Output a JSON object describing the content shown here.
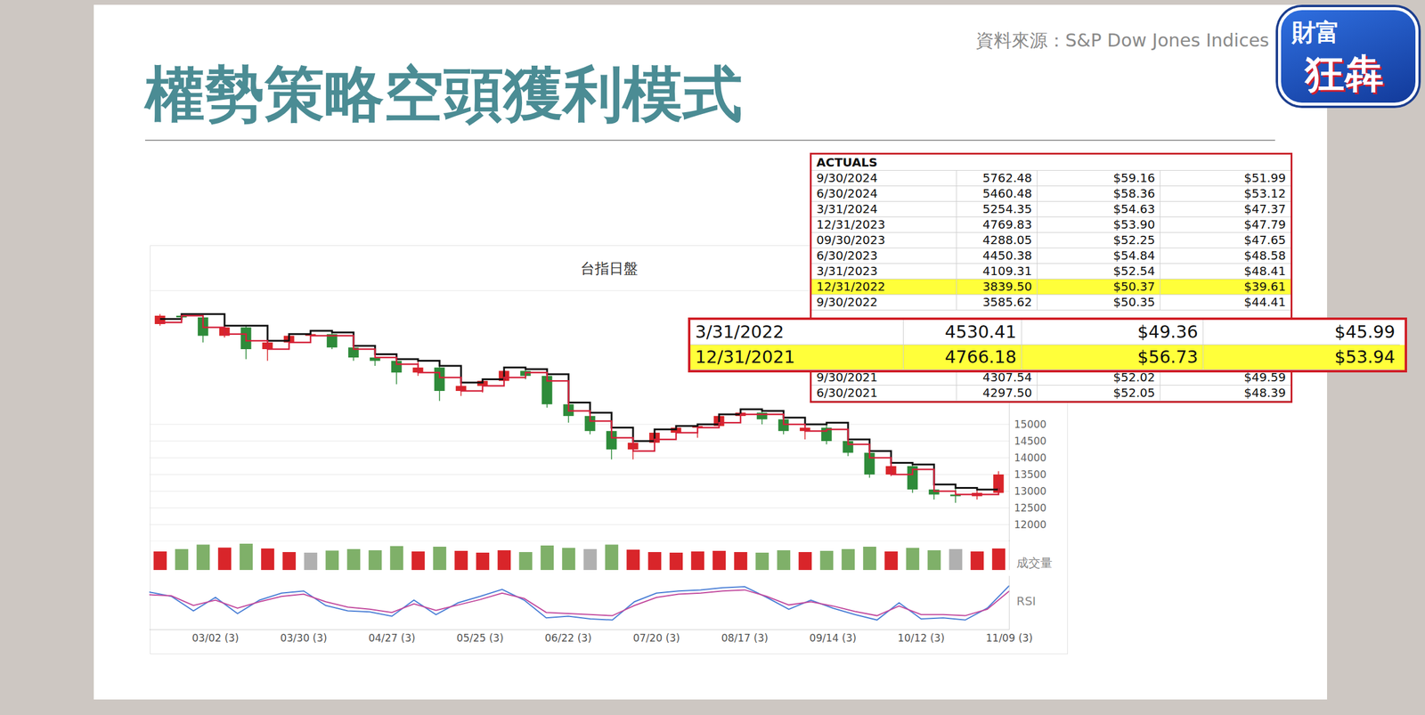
{
  "title": "權勢策略空頭獲利模式",
  "source": "資料來源：S&P Dow Jones Indices",
  "logo": {
    "top": "財富",
    "bottom": "狂犇"
  },
  "chart_data": {
    "type": "candlestick",
    "title": "台指日盤",
    "x": [
      null,
      null,
      null,
      "03/02 (3)",
      null,
      null,
      null,
      "03/30 (3)",
      null,
      null,
      null,
      "04/27 (3)",
      null,
      null,
      null,
      "05/25 (3)",
      null,
      null,
      null,
      "06/22 (3)",
      null,
      null,
      null,
      "07/20 (3)",
      null,
      null,
      null,
      "08/17 (3)",
      null,
      null,
      null,
      "09/14 (3)",
      null,
      null,
      null,
      "10/12 (3)",
      null,
      null,
      null,
      "11/09 (3)"
    ],
    "ylim": [
      11500,
      19000
    ],
    "yticks": [
      12000,
      12500,
      13000,
      13500,
      14000,
      14500,
      15000
    ],
    "grid": true,
    "open": [
      18000,
      18250,
      18200,
      17650,
      17900,
      17250,
      17450,
      17650,
      17700,
      17300,
      17000,
      16900,
      16550,
      16700,
      16000,
      16150,
      16300,
      16600,
      16450,
      15600,
      15250,
      14800,
      14250,
      14450,
      14750,
      14900,
      14950,
      15250,
      15350,
      15150,
      14800,
      14900,
      14500,
      14150,
      13500,
      13750,
      13050,
      12900,
      12850,
      12950
    ],
    "high": [
      18300,
      18320,
      18250,
      17950,
      17950,
      17500,
      17700,
      17800,
      17750,
      17350,
      17100,
      16950,
      16900,
      16750,
      16250,
      16350,
      16700,
      16650,
      16500,
      15650,
      15350,
      14900,
      14500,
      14850,
      14950,
      15000,
      15300,
      15450,
      15400,
      15200,
      15000,
      15050,
      14550,
      14200,
      13850,
      13800,
      13200,
      13100,
      13050,
      13600
    ],
    "low": [
      17950,
      18050,
      17450,
      17600,
      16950,
      16900,
      17400,
      17550,
      17250,
      16900,
      16750,
      16200,
      16450,
      15700,
      15850,
      15950,
      16250,
      16350,
      15500,
      15050,
      14700,
      13950,
      13950,
      14400,
      14650,
      14600,
      14900,
      15200,
      15000,
      14700,
      14550,
      14400,
      14050,
      13400,
      13450,
      12950,
      12750,
      12650,
      12750,
      12900
    ],
    "close": [
      18250,
      18200,
      17650,
      17900,
      17250,
      17450,
      17650,
      17700,
      17300,
      17000,
      16900,
      16550,
      16700,
      16000,
      16150,
      16300,
      16600,
      16450,
      15600,
      15250,
      14800,
      14250,
      14450,
      14750,
      14900,
      14950,
      15250,
      15350,
      15150,
      14800,
      14900,
      14500,
      14150,
      13500,
      13750,
      13050,
      12900,
      12850,
      12950,
      13500
    ],
    "colors": [
      "#d9252a",
      "#2e8b3a",
      "#2e8b3a",
      "#d9252a",
      "#2e8b3a",
      "#d9252a",
      "#d9252a",
      "#d9252a",
      "#2e8b3a",
      "#2e8b3a",
      "#2e8b3a",
      "#2e8b3a",
      "#d9252a",
      "#2e8b3a",
      "#d9252a",
      "#d9252a",
      "#d9252a",
      "#2e8b3a",
      "#2e8b3a",
      "#2e8b3a",
      "#2e8b3a",
      "#2e8b3a",
      "#d9252a",
      "#d9252a",
      "#d9252a",
      "#d9252a",
      "#d9252a",
      "#d9252a",
      "#2e8b3a",
      "#2e8b3a",
      "#d9252a",
      "#2e8b3a",
      "#2e8b3a",
      "#2e8b3a",
      "#d9252a",
      "#2e8b3a",
      "#2e8b3a",
      "#2e8b3a",
      "#d9252a",
      "#d9252a"
    ],
    "series": [
      {
        "color": "#111111",
        "line_style": "step",
        "values": [
          18150,
          18300,
          18300,
          17950,
          17950,
          17500,
          17700,
          17800,
          17750,
          17350,
          17100,
          16950,
          16900,
          16750,
          16250,
          16350,
          16700,
          16650,
          16500,
          15650,
          15350,
          14900,
          14500,
          14850,
          14950,
          15000,
          15300,
          15450,
          15400,
          15200,
          15000,
          15050,
          14550,
          14200,
          13850,
          13800,
          13200,
          13100,
          13050,
          13100
        ]
      },
      {
        "color": "#d4213a",
        "line_style": "step",
        "values": [
          18050,
          18250,
          17900,
          17700,
          17500,
          17250,
          17450,
          17650,
          17650,
          17250,
          17000,
          16800,
          16550,
          16400,
          16000,
          16150,
          16400,
          16550,
          16300,
          15400,
          15100,
          14600,
          14200,
          14550,
          14750,
          14900,
          15050,
          15300,
          15300,
          15000,
          14800,
          14850,
          14400,
          14000,
          13500,
          13650,
          13000,
          12900,
          12900,
          13300
        ]
      }
    ],
    "volume": {
      "label": "成交量",
      "ylim": [
        0,
        100
      ],
      "tick_labels": false,
      "values": [
        62,
        70,
        85,
        75,
        88,
        72,
        60,
        58,
        65,
        70,
        66,
        80,
        62,
        78,
        64,
        58,
        66,
        60,
        82,
        74,
        70,
        85,
        68,
        60,
        58,
        62,
        64,
        60,
        58,
        66,
        60,
        64,
        70,
        78,
        62,
        74,
        66,
        70,
        62,
        72
      ],
      "colors": [
        "#d9252a",
        "#7fb069",
        "#7fb069",
        "#d9252a",
        "#7fb069",
        "#d9252a",
        "#d9252a",
        "#b0b0b0",
        "#7fb069",
        "#7fb069",
        "#7fb069",
        "#7fb069",
        "#d9252a",
        "#7fb069",
        "#d9252a",
        "#d9252a",
        "#d9252a",
        "#7fb069",
        "#7fb069",
        "#7fb069",
        "#b0b0b0",
        "#7fb069",
        "#d9252a",
        "#d9252a",
        "#d9252a",
        "#d9252a",
        "#d9252a",
        "#d9252a",
        "#7fb069",
        "#7fb069",
        "#d9252a",
        "#7fb069",
        "#7fb069",
        "#7fb069",
        "#d9252a",
        "#7fb069",
        "#7fb069",
        "#b0b0b0",
        "#d9252a",
        "#d9252a"
      ]
    },
    "rsi": {
      "label": "RSI",
      "ylim": [
        0,
        100
      ],
      "tick_labels": false,
      "series": [
        {
          "color": "#4a7fd6",
          "values": [
            70,
            62,
            35,
            60,
            30,
            55,
            68,
            72,
            45,
            35,
            33,
            25,
            55,
            28,
            50,
            62,
            75,
            55,
            22,
            25,
            20,
            18,
            52,
            68,
            72,
            74,
            78,
            80,
            60,
            38,
            55,
            40,
            28,
            18,
            50,
            20,
            22,
            18,
            40,
            82
          ]
        },
        {
          "color": "#c24a9e",
          "values": [
            65,
            63,
            45,
            55,
            40,
            52,
            62,
            66,
            52,
            42,
            38,
            32,
            48,
            36,
            46,
            56,
            68,
            58,
            32,
            30,
            28,
            26,
            45,
            60,
            66,
            68,
            72,
            74,
            62,
            46,
            52,
            44,
            34,
            26,
            44,
            28,
            28,
            26,
            38,
            72
          ]
        }
      ]
    }
  },
  "table": {
    "header": "ACTUALS",
    "rows_above": [
      {
        "cells": [
          "9/30/2024",
          "5762.48",
          "$59.16",
          "$51.99"
        ]
      },
      {
        "cells": [
          "6/30/2024",
          "5460.48",
          "$58.36",
          "$53.12"
        ]
      },
      {
        "cells": [
          "3/31/2024",
          "5254.35",
          "$54.63",
          "$47.37"
        ]
      },
      {
        "cells": [
          "12/31/2023",
          "4769.83",
          "$53.90",
          "$47.79"
        ]
      },
      {
        "cells": [
          "09/30/2023",
          "4288.05",
          "$52.25",
          "$47.65"
        ]
      },
      {
        "cells": [
          "6/30/2023",
          "4450.38",
          "$54.84",
          "$48.58"
        ]
      },
      {
        "cells": [
          "3/31/2023",
          "4109.31",
          "$52.54",
          "$48.41"
        ]
      },
      {
        "cells": [
          "12/31/2022",
          "3839.50",
          "$50.37",
          "$39.61"
        ],
        "color": "#ffff3a"
      },
      {
        "cells": [
          "9/30/2022",
          "3585.62",
          "$50.35",
          "$44.41"
        ]
      }
    ],
    "zoom_rows": [
      {
        "cells": [
          "3/31/2022",
          "4530.41",
          "$49.36",
          "$45.99"
        ]
      },
      {
        "cells": [
          "12/31/2021",
          "4766.18",
          "$56.73",
          "$53.94"
        ],
        "color": "#ffff3a"
      }
    ],
    "rows_below": [
      {
        "cells": [
          "9/30/2021",
          "4307.54",
          "$52.02",
          "$49.59"
        ]
      },
      {
        "cells": [
          "6/30/2021",
          "4297.50",
          "$52.05",
          "$48.39"
        ]
      }
    ]
  }
}
